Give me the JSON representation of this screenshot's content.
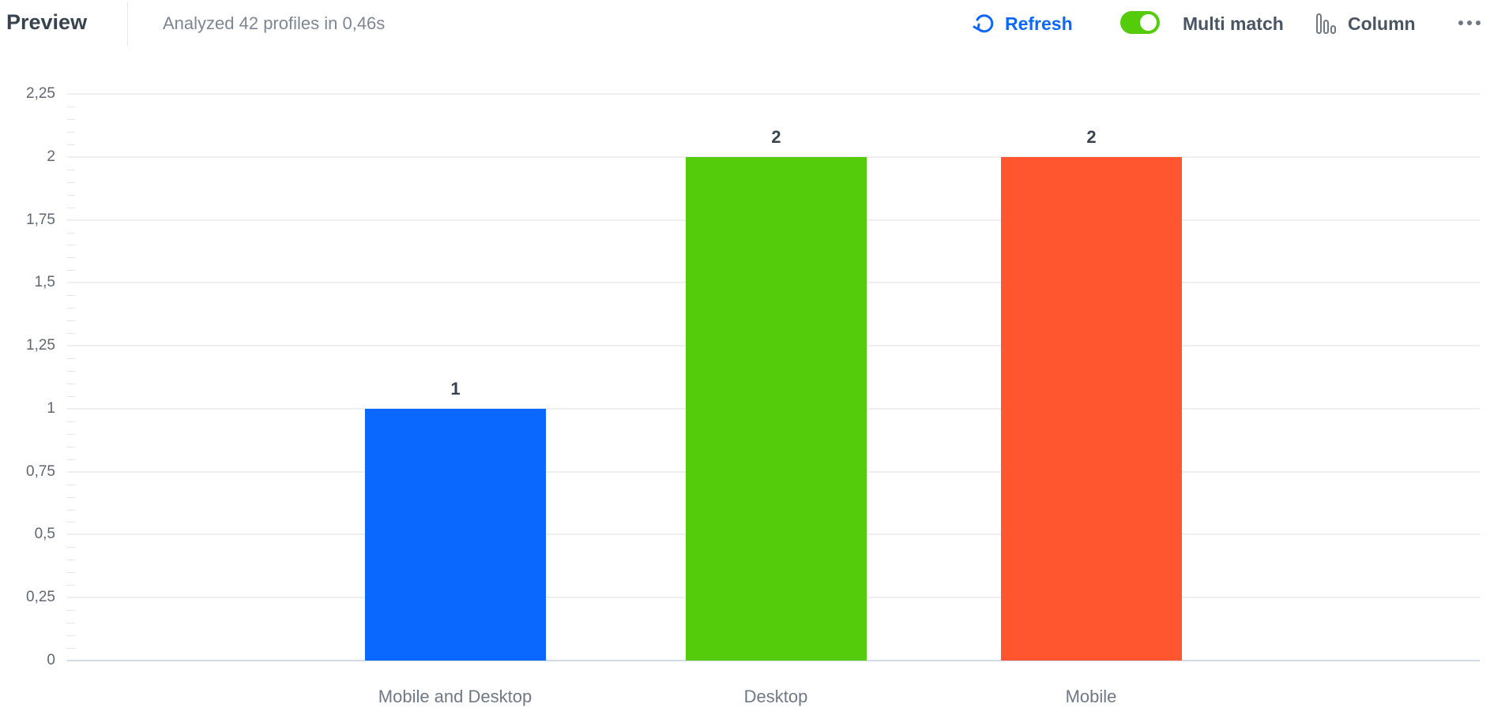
{
  "header": {
    "title": "Preview",
    "status": "Analyzed 42 profiles in 0,46s",
    "refresh_label": "Refresh",
    "refresh_icon": "refresh-icon",
    "multi_match_label": "Multi match",
    "multi_match_enabled": true,
    "chart_type_label": "Column",
    "chart_type_icon": "column-chart-icon",
    "more_icon": "more-horizontal-icon"
  },
  "colors": {
    "accent": "#0b68ff",
    "toggle_on": "#54cb0b",
    "bar_1": "#0b68ff",
    "bar_2": "#54cb0b",
    "bar_3": "#ff5630"
  },
  "chart_data": {
    "type": "bar",
    "title": "",
    "xlabel": "",
    "ylabel": "",
    "categories": [
      "Mobile and Desktop",
      "Desktop",
      "Mobile"
    ],
    "values": [
      1,
      2,
      2
    ],
    "value_labels": [
      "1",
      "2",
      "2"
    ],
    "bar_colors": [
      "#0b68ff",
      "#54cb0b",
      "#ff5630"
    ],
    "ylim": [
      0,
      2.25
    ],
    "yticks": [
      "0",
      "0,25",
      "0,5",
      "0,75",
      "1",
      "1,25",
      "1,5",
      "1,75",
      "2",
      "2,25"
    ],
    "grid": true,
    "legend": "none"
  }
}
